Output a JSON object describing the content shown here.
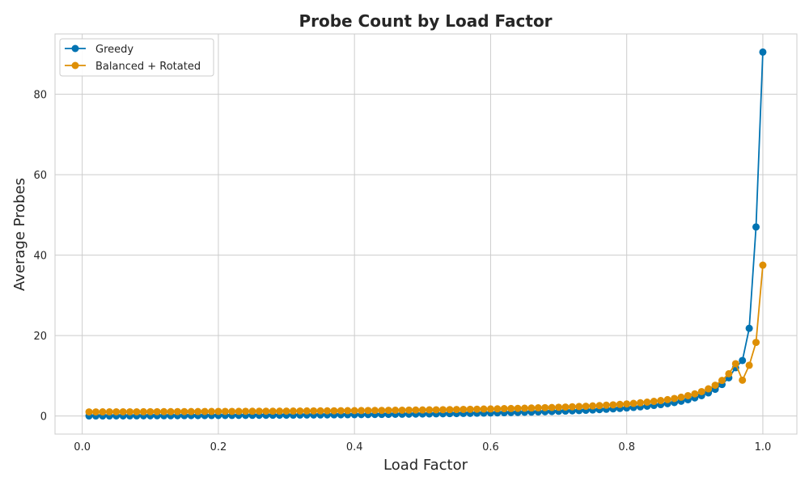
{
  "chart_data": {
    "type": "line",
    "title": "Probe Count by Load Factor",
    "xlabel": "Load Factor",
    "ylabel": "Average Probes",
    "xlim": [
      -0.04,
      1.05
    ],
    "ylim": [
      -4.5,
      95
    ],
    "x_ticks": [
      0.0,
      0.2,
      0.4,
      0.6,
      0.8,
      1.0
    ],
    "x_tick_labels": [
      "0.0",
      "0.2",
      "0.4",
      "0.6",
      "0.8",
      "1.0"
    ],
    "y_ticks": [
      0,
      20,
      40,
      60,
      80
    ],
    "y_tick_labels": [
      "0",
      "20",
      "40",
      "60",
      "80"
    ],
    "grid": true,
    "legend_position": "top-left",
    "series": [
      {
        "name": "Greedy",
        "color": "#0173b2",
        "x": [
          0.01,
          0.02,
          0.03,
          0.04,
          0.05,
          0.06,
          0.07,
          0.08,
          0.09,
          0.1,
          0.11,
          0.12,
          0.13,
          0.14,
          0.15,
          0.16,
          0.17,
          0.18,
          0.19,
          0.2,
          0.21,
          0.22,
          0.23,
          0.24,
          0.25,
          0.26,
          0.27,
          0.28,
          0.29,
          0.3,
          0.31,
          0.32,
          0.33,
          0.34,
          0.35,
          0.36,
          0.37,
          0.38,
          0.39,
          0.4,
          0.41,
          0.42,
          0.43,
          0.44,
          0.45,
          0.46,
          0.47,
          0.48,
          0.49,
          0.5,
          0.51,
          0.52,
          0.53,
          0.54,
          0.55,
          0.56,
          0.57,
          0.58,
          0.59,
          0.6,
          0.61,
          0.62,
          0.63,
          0.64,
          0.65,
          0.66,
          0.67,
          0.68,
          0.69,
          0.7,
          0.71,
          0.72,
          0.73,
          0.74,
          0.75,
          0.76,
          0.77,
          0.78,
          0.79,
          0.8,
          0.81,
          0.82,
          0.83,
          0.84,
          0.85,
          0.86,
          0.87,
          0.88,
          0.89,
          0.9,
          0.91,
          0.92,
          0.93,
          0.94,
          0.95,
          0.96,
          0.97,
          0.98,
          0.99,
          1.0
        ],
        "values": [
          0.01,
          0.01,
          0.02,
          0.02,
          0.03,
          0.03,
          0.04,
          0.04,
          0.05,
          0.05,
          0.06,
          0.07,
          0.07,
          0.08,
          0.09,
          0.1,
          0.1,
          0.11,
          0.12,
          0.13,
          0.13,
          0.14,
          0.15,
          0.16,
          0.17,
          0.18,
          0.18,
          0.19,
          0.2,
          0.21,
          0.22,
          0.24,
          0.25,
          0.26,
          0.27,
          0.28,
          0.29,
          0.31,
          0.32,
          0.33,
          0.35,
          0.36,
          0.38,
          0.39,
          0.41,
          0.43,
          0.44,
          0.46,
          0.48,
          0.5,
          0.52,
          0.54,
          0.56,
          0.59,
          0.61,
          0.64,
          0.66,
          0.69,
          0.72,
          0.75,
          0.78,
          0.82,
          0.85,
          0.89,
          0.93,
          0.97,
          1.02,
          1.06,
          1.11,
          1.17,
          1.22,
          1.29,
          1.35,
          1.42,
          1.5,
          1.58,
          1.68,
          1.77,
          1.88,
          2.0,
          2.13,
          2.28,
          2.44,
          2.63,
          2.83,
          3.07,
          3.35,
          3.67,
          4.05,
          4.5,
          5.06,
          5.75,
          6.64,
          7.83,
          9.5,
          12.0,
          13.8,
          21.8,
          47.0,
          90.5
        ]
      },
      {
        "name": "Balanced + Rotated",
        "color": "#de8f05",
        "x": [
          0.01,
          0.02,
          0.03,
          0.04,
          0.05,
          0.06,
          0.07,
          0.08,
          0.09,
          0.1,
          0.11,
          0.12,
          0.13,
          0.14,
          0.15,
          0.16,
          0.17,
          0.18,
          0.19,
          0.2,
          0.21,
          0.22,
          0.23,
          0.24,
          0.25,
          0.26,
          0.27,
          0.28,
          0.29,
          0.3,
          0.31,
          0.32,
          0.33,
          0.34,
          0.35,
          0.36,
          0.37,
          0.38,
          0.39,
          0.4,
          0.41,
          0.42,
          0.43,
          0.44,
          0.45,
          0.46,
          0.47,
          0.48,
          0.49,
          0.5,
          0.51,
          0.52,
          0.53,
          0.54,
          0.55,
          0.56,
          0.57,
          0.58,
          0.59,
          0.6,
          0.61,
          0.62,
          0.63,
          0.64,
          0.65,
          0.66,
          0.67,
          0.68,
          0.69,
          0.7,
          0.71,
          0.72,
          0.73,
          0.74,
          0.75,
          0.76,
          0.77,
          0.78,
          0.79,
          0.8,
          0.81,
          0.82,
          0.83,
          0.84,
          0.85,
          0.86,
          0.87,
          0.88,
          0.89,
          0.9,
          0.91,
          0.92,
          0.93,
          0.94,
          0.95,
          0.96,
          0.97,
          0.98,
          0.99,
          1.0
        ],
        "values": [
          1.01,
          1.01,
          1.02,
          1.02,
          1.03,
          1.03,
          1.04,
          1.04,
          1.05,
          1.06,
          1.06,
          1.07,
          1.07,
          1.08,
          1.09,
          1.1,
          1.1,
          1.11,
          1.12,
          1.13,
          1.13,
          1.14,
          1.15,
          1.16,
          1.17,
          1.18,
          1.18,
          1.19,
          1.2,
          1.21,
          1.22,
          1.24,
          1.25,
          1.26,
          1.27,
          1.28,
          1.29,
          1.31,
          1.32,
          1.33,
          1.35,
          1.36,
          1.38,
          1.39,
          1.41,
          1.43,
          1.44,
          1.46,
          1.48,
          1.5,
          1.52,
          1.54,
          1.56,
          1.59,
          1.61,
          1.64,
          1.66,
          1.69,
          1.72,
          1.75,
          1.78,
          1.82,
          1.85,
          1.89,
          1.93,
          1.97,
          2.02,
          2.06,
          2.11,
          2.17,
          2.22,
          2.29,
          2.35,
          2.42,
          2.5,
          2.58,
          2.68,
          2.77,
          2.88,
          3.0,
          3.13,
          3.28,
          3.44,
          3.63,
          3.83,
          4.07,
          4.35,
          4.67,
          5.05,
          5.5,
          6.06,
          6.75,
          7.64,
          8.83,
          10.5,
          13.0,
          8.9,
          12.6,
          18.3,
          37.5
        ]
      }
    ]
  }
}
